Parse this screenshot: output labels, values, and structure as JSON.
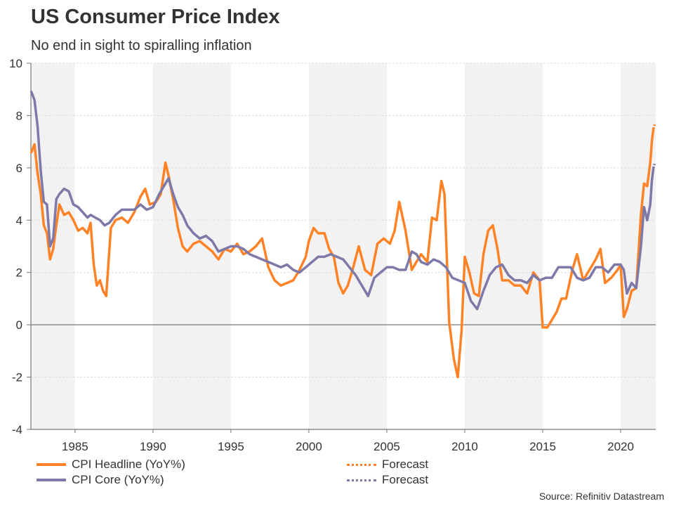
{
  "chart_data": {
    "type": "line",
    "title": "US Consumer Price Index",
    "subtitle": "No end in sight to spiralling inflation",
    "xlabel": "",
    "ylabel": "",
    "xlim": [
      1982.17,
      2022.25
    ],
    "ylim": [
      -4,
      10
    ],
    "yticks": [
      -4,
      -2,
      0,
      2,
      4,
      6,
      8,
      10
    ],
    "ytick_labels": [
      "-4",
      "-2",
      "0",
      "2",
      "4",
      "6",
      "8",
      "10"
    ],
    "xticks": [
      1985,
      1990,
      1995,
      2000,
      2005,
      2010,
      2015,
      2020
    ],
    "xtick_labels": [
      "1985",
      "1990",
      "1995",
      "2000",
      "2005",
      "2010",
      "2015",
      "2020"
    ],
    "shaded_bands": [
      [
        1982.17,
        1985
      ],
      [
        1990,
        1995
      ],
      [
        2000,
        2005
      ],
      [
        2010,
        2015
      ],
      [
        2020,
        2022.25
      ]
    ],
    "grid": true,
    "legend_position": "bottom",
    "colors": {
      "headline": "#ff8326",
      "core": "#7d79a8",
      "band": "#f2f2f2",
      "grid": "#dddddd",
      "axis": "#777777"
    },
    "series": [
      {
        "name": "CPI Headline (YoY%)",
        "color": "#ff8326",
        "x": [
          1982.2,
          1982.4,
          1982.6,
          1982.8,
          1983.0,
          1983.2,
          1983.4,
          1983.6,
          1983.8,
          1984.0,
          1984.3,
          1984.6,
          1984.9,
          1985.2,
          1985.5,
          1985.8,
          1986.0,
          1986.2,
          1986.4,
          1986.6,
          1986.8,
          1987.0,
          1987.3,
          1987.6,
          1988.0,
          1988.4,
          1988.8,
          1989.2,
          1989.5,
          1989.8,
          1990.2,
          1990.5,
          1990.8,
          1991.0,
          1991.3,
          1991.6,
          1991.9,
          1992.2,
          1992.6,
          1993.0,
          1993.4,
          1993.8,
          1994.2,
          1994.6,
          1995.0,
          1995.4,
          1995.8,
          1996.2,
          1996.6,
          1997.0,
          1997.4,
          1997.8,
          1998.2,
          1998.6,
          1999.0,
          1999.4,
          1999.8,
          2000.0,
          2000.3,
          2000.6,
          2001.0,
          2001.3,
          2001.6,
          2001.9,
          2002.2,
          2002.5,
          2002.8,
          2003.2,
          2003.6,
          2004.0,
          2004.4,
          2004.8,
          2005.2,
          2005.5,
          2005.8,
          2006.2,
          2006.6,
          2006.9,
          2007.2,
          2007.6,
          2007.9,
          2008.2,
          2008.5,
          2008.7,
          2009.0,
          2009.3,
          2009.55,
          2009.8,
          2010.0,
          2010.3,
          2010.6,
          2010.9,
          2011.2,
          2011.5,
          2011.8,
          2012.1,
          2012.4,
          2012.8,
          2013.2,
          2013.6,
          2014.0,
          2014.4,
          2014.8,
          2015.0,
          2015.3,
          2015.6,
          2015.9,
          2016.2,
          2016.5,
          2016.9,
          2017.2,
          2017.6,
          2018.0,
          2018.4,
          2018.7,
          2019.0,
          2019.4,
          2019.8,
          2020.0,
          2020.2,
          2020.4,
          2020.7,
          2021.0,
          2021.3,
          2021.5,
          2021.7,
          2021.9,
          2022.0,
          2022.1,
          2022.2
        ],
        "y": [
          6.6,
          6.9,
          5.8,
          5.0,
          3.8,
          3.5,
          2.5,
          2.9,
          3.8,
          4.6,
          4.2,
          4.3,
          4.0,
          3.6,
          3.7,
          3.5,
          3.9,
          2.3,
          1.5,
          1.7,
          1.3,
          1.1,
          3.7,
          4.0,
          4.1,
          3.9,
          4.3,
          4.9,
          5.2,
          4.6,
          4.7,
          5.0,
          6.2,
          5.7,
          4.8,
          3.7,
          3.0,
          2.8,
          3.1,
          3.2,
          3.0,
          2.8,
          2.5,
          2.9,
          2.8,
          3.1,
          2.7,
          2.8,
          3.0,
          3.3,
          2.2,
          1.7,
          1.5,
          1.6,
          1.7,
          2.1,
          2.6,
          3.2,
          3.7,
          3.5,
          3.5,
          2.9,
          2.6,
          1.6,
          1.2,
          1.5,
          2.1,
          3.0,
          2.1,
          1.9,
          3.1,
          3.3,
          3.1,
          3.6,
          4.7,
          3.6,
          2.1,
          2.4,
          2.7,
          2.4,
          4.1,
          4.0,
          5.5,
          5.0,
          0.1,
          -1.3,
          -2.0,
          -0.2,
          2.6,
          2.0,
          1.2,
          1.1,
          2.7,
          3.6,
          3.8,
          2.9,
          1.7,
          1.7,
          1.5,
          1.5,
          1.2,
          2.0,
          1.7,
          -0.1,
          -0.1,
          0.2,
          0.5,
          1.0,
          1.0,
          2.1,
          2.7,
          1.7,
          2.1,
          2.5,
          2.9,
          1.6,
          1.8,
          2.1,
          2.3,
          0.3,
          0.6,
          1.3,
          1.4,
          4.2,
          5.4,
          5.3,
          6.2,
          7.0,
          7.5,
          7.7
        ],
        "forecast_from": 2022.1
      },
      {
        "name": "CPI Core (YoY%)",
        "color": "#7d79a8",
        "x": [
          1982.2,
          1982.4,
          1982.6,
          1982.8,
          1983.0,
          1983.2,
          1983.4,
          1983.6,
          1983.8,
          1984.0,
          1984.3,
          1984.6,
          1984.9,
          1985.2,
          1985.5,
          1985.8,
          1986.0,
          1986.3,
          1986.6,
          1986.9,
          1987.2,
          1987.6,
          1988.0,
          1988.4,
          1988.8,
          1989.2,
          1989.6,
          1990.0,
          1990.4,
          1990.8,
          1991.0,
          1991.3,
          1991.6,
          1991.9,
          1992.2,
          1992.6,
          1993.0,
          1993.4,
          1993.8,
          1994.2,
          1994.6,
          1995.0,
          1995.4,
          1995.8,
          1996.2,
          1996.6,
          1997.0,
          1997.4,
          1997.8,
          1998.2,
          1998.6,
          1999.0,
          1999.4,
          1999.8,
          2000.2,
          2000.6,
          2001.0,
          2001.4,
          2001.8,
          2002.2,
          2002.6,
          2003.0,
          2003.4,
          2003.8,
          2004.2,
          2004.6,
          2005.0,
          2005.4,
          2005.8,
          2006.2,
          2006.6,
          2006.9,
          2007.2,
          2007.6,
          2008.0,
          2008.4,
          2008.8,
          2009.2,
          2009.6,
          2010.0,
          2010.4,
          2010.8,
          2011.2,
          2011.6,
          2012.0,
          2012.4,
          2012.8,
          2013.2,
          2013.6,
          2014.0,
          2014.4,
          2014.8,
          2015.2,
          2015.6,
          2016.0,
          2016.4,
          2016.8,
          2017.2,
          2017.6,
          2018.0,
          2018.4,
          2018.8,
          2019.2,
          2019.6,
          2020.0,
          2020.2,
          2020.4,
          2020.7,
          2021.0,
          2021.3,
          2021.5,
          2021.7,
          2021.9,
          2022.0,
          2022.1,
          2022.2
        ],
        "y": [
          8.9,
          8.6,
          7.6,
          5.9,
          4.7,
          4.6,
          3.0,
          3.3,
          4.8,
          5.0,
          5.2,
          5.1,
          4.6,
          4.5,
          4.3,
          4.1,
          4.2,
          4.1,
          4.0,
          3.8,
          3.9,
          4.2,
          4.4,
          4.4,
          4.4,
          4.6,
          4.4,
          4.5,
          5.0,
          5.4,
          5.6,
          5.0,
          4.5,
          4.2,
          3.8,
          3.5,
          3.3,
          3.4,
          3.2,
          2.8,
          2.9,
          3.0,
          3.0,
          2.9,
          2.7,
          2.6,
          2.5,
          2.4,
          2.3,
          2.2,
          2.3,
          2.1,
          2.0,
          2.2,
          2.4,
          2.6,
          2.6,
          2.7,
          2.6,
          2.5,
          2.2,
          1.9,
          1.5,
          1.1,
          1.8,
          2.0,
          2.2,
          2.2,
          2.1,
          2.1,
          2.8,
          2.7,
          2.4,
          2.3,
          2.5,
          2.4,
          2.2,
          1.8,
          1.7,
          1.6,
          0.9,
          0.6,
          1.3,
          1.9,
          2.2,
          2.3,
          1.9,
          1.7,
          1.7,
          1.6,
          1.9,
          1.7,
          1.8,
          1.8,
          2.2,
          2.2,
          2.2,
          1.8,
          1.7,
          1.8,
          2.2,
          2.2,
          2.0,
          2.3,
          2.3,
          2.1,
          1.2,
          1.6,
          1.4,
          3.0,
          4.5,
          4.0,
          4.6,
          5.5,
          6.0,
          6.2
        ],
        "forecast_from": 2022.1
      }
    ],
    "legend": [
      {
        "label": "CPI Headline (YoY%)",
        "style": "solid",
        "color": "#ff8326"
      },
      {
        "label": "CPI Core (YoY%)",
        "style": "solid",
        "color": "#7d79a8"
      },
      {
        "label": "Forecast",
        "style": "dotted",
        "color": "#ff8326"
      },
      {
        "label": "Forecast",
        "style": "dotted",
        "color": "#7d79a8"
      }
    ],
    "source": "Source: Refinitiv Datastream"
  }
}
